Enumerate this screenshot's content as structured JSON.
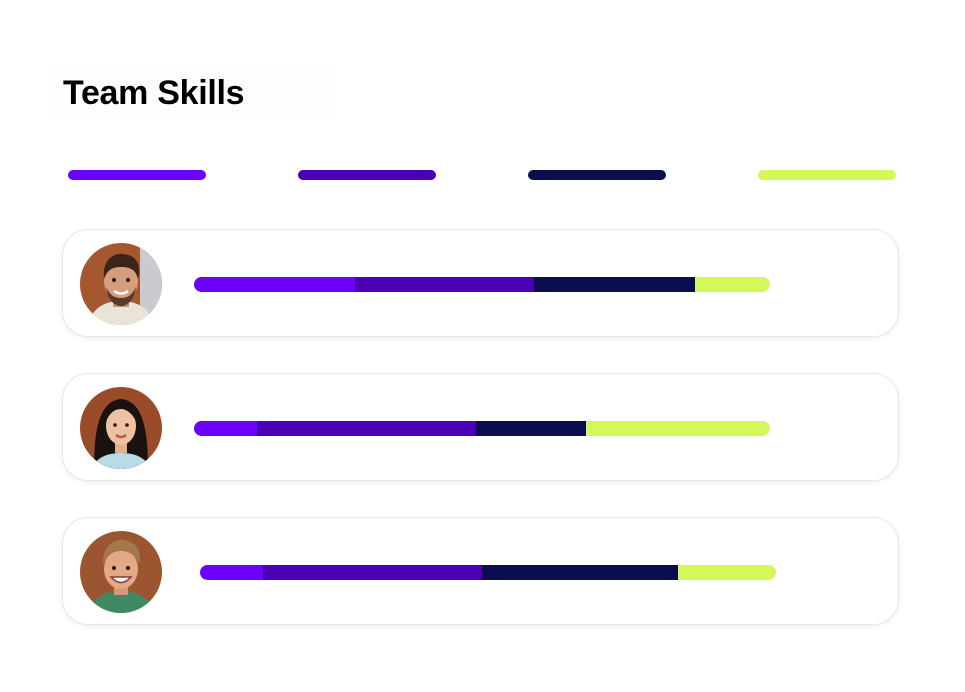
{
  "title": "Team Skills",
  "colors": {
    "skill_1": "#6c00ff",
    "skill_2": "#4a00b5",
    "skill_3": "#0a0d4f",
    "skill_4": "#d4f75a"
  },
  "legend": [
    {
      "color": "#6c00ff"
    },
    {
      "color": "#4a00b5"
    },
    {
      "color": "#0a0d4f"
    },
    {
      "color": "#d4f75a"
    }
  ],
  "members": [
    {
      "avatar_icon": "man-beard-avatar-icon",
      "skill_shares": [
        0.28,
        0.31,
        0.28,
        0.13
      ]
    },
    {
      "avatar_icon": "woman-avatar-icon",
      "skill_shares": [
        0.11,
        0.38,
        0.19,
        0.32
      ]
    },
    {
      "avatar_icon": "man-smiling-avatar-icon",
      "skill_shares": [
        0.11,
        0.38,
        0.34,
        0.17
      ]
    }
  ]
}
